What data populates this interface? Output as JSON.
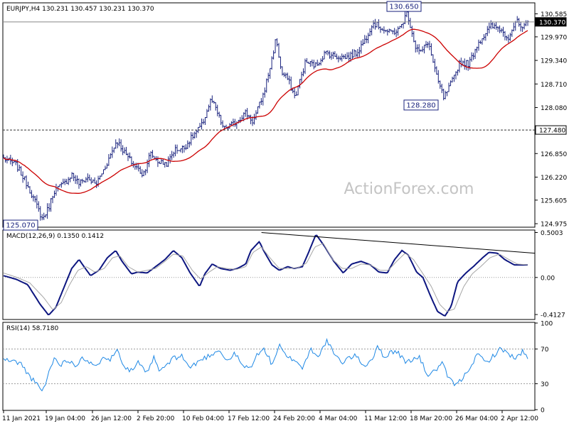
{
  "header": {
    "main_title": "EURJPY,H4  130.231 130.457 130.231 130.370",
    "macd_title": "MACD(12,26,9) 0.1350 0.1412",
    "rsi_title": "RSI(14) 58.7180",
    "watermark": "ActionForex.com"
  },
  "chart_data": [
    {
      "type": "ohlc",
      "symbol": "EURJPY",
      "timeframe": "H4",
      "last": {
        "open": "130.231",
        "high": "130.457",
        "low": "130.231",
        "close": "130.370"
      },
      "price_axis_ticks": [
        "130.585",
        "129.970",
        "129.340",
        "128.710",
        "128.080",
        "126.850",
        "126.220",
        "125.605",
        "124.975"
      ],
      "ylim": [
        124.9,
        130.86
      ],
      "annotations": [
        {
          "text": "130.650",
          "value": 130.65,
          "kind": "swing-high"
        },
        {
          "text": "128.280",
          "value": 128.28,
          "kind": "swing-low"
        },
        {
          "text": "125.070",
          "value": 125.07,
          "kind": "swing-low"
        }
      ],
      "horizontal_lines": [
        {
          "value": 130.37,
          "style": "solid",
          "label": "130.370"
        },
        {
          "value": 127.48,
          "style": "dashed",
          "label": "127.480"
        }
      ],
      "moving_average_color": "#cc0000",
      "bar_color": "#1a237e",
      "x": [
        0,
        2.4,
        4.6,
        6.2,
        7.4,
        8.6,
        9.6,
        11.6,
        13.0,
        14.4,
        16.0,
        17.6,
        19.4,
        21.6,
        23.2,
        24.8,
        25.6,
        26.6,
        28.0,
        29.6,
        31.2,
        32.6,
        34.4,
        36.0,
        37.8,
        39.6,
        40.6,
        42.0,
        44.0,
        46.2,
        47.6,
        49.6,
        51.0,
        52.0,
        53.0,
        54.2,
        55.6,
        57.6,
        59.6,
        61.4,
        63.4,
        65.4,
        67.4,
        69.0,
        70.4,
        72.0,
        73.6,
        75.4,
        77.0,
        78.6,
        79.6,
        81.0,
        82.6,
        84.0,
        86.0,
        87.0,
        88.8,
        90.4,
        91.6,
        93.0,
        94.6,
        96.2,
        97.8,
        99.0,
        100
      ],
      "close": [
        126.72,
        126.55,
        126.0,
        125.5,
        125.1,
        125.4,
        125.85,
        126.05,
        126.3,
        126.05,
        126.2,
        126.02,
        126.5,
        127.2,
        126.85,
        126.55,
        126.45,
        126.28,
        126.85,
        126.62,
        126.58,
        126.95,
        127.0,
        127.3,
        127.6,
        128.3,
        128.0,
        127.5,
        127.65,
        127.95,
        127.7,
        128.45,
        129.25,
        129.95,
        129.0,
        128.85,
        128.35,
        129.3,
        129.2,
        129.55,
        129.45,
        129.42,
        129.55,
        129.9,
        130.35,
        130.22,
        130.08,
        130.15,
        130.62,
        129.7,
        129.55,
        129.85,
        128.9,
        128.33,
        128.9,
        129.3,
        129.25,
        129.78,
        130.0,
        130.25,
        130.2,
        129.95,
        130.4,
        130.15,
        130.37
      ],
      "x_axis_labels": [
        "11 Jan 2021",
        "19 Jan 04:00",
        "26 Jan 12:00",
        "2 Feb 20:00",
        "10 Feb 04:00",
        "17 Feb 12:00",
        "24 Feb 20:00",
        "4 Mar 04:00",
        "11 Mar 12:00",
        "18 Mar 20:00",
        "26 Mar 04:00",
        "2 Apr 12:00"
      ]
    },
    {
      "type": "line",
      "indicator": "MACD(12,26,9)",
      "values_shown": [
        "0.1350",
        "0.1412"
      ],
      "ticks": [
        "0.5003",
        "0.00",
        "-0.4127"
      ],
      "ylim": [
        -0.46,
        0.52
      ],
      "zero_line": "dotted",
      "series": [
        {
          "color": "#0d1680",
          "x": [
            0,
            2.4,
            4.6,
            7.0,
            8.6,
            10.0,
            11.6,
            13.0,
            14.4,
            15.6,
            16.6,
            18.2,
            19.8,
            21.4,
            22.6,
            24.4,
            25.6,
            27.4,
            29.0,
            30.8,
            32.4,
            34.0,
            35.6,
            37.4,
            38.4,
            39.8,
            41.4,
            43.2,
            44.6,
            46.2,
            47.2,
            48.8,
            49.6,
            51.2,
            52.6,
            54.2,
            55.4,
            57.0,
            58.2,
            59.6,
            61.2,
            63.0,
            64.8,
            66.4,
            68.2,
            70.0,
            71.6,
            73.2,
            74.6,
            76.0,
            77.2,
            78.8,
            80.0,
            81.4,
            82.8,
            84.2,
            85.4,
            86.6,
            88.2,
            89.6,
            91.4,
            92.6,
            94.2,
            95.6,
            97.4,
            99.0,
            100
          ],
          "values": [
            0.02,
            -0.02,
            -0.08,
            -0.3,
            -0.42,
            -0.33,
            -0.1,
            0.1,
            0.2,
            0.1,
            0.02,
            0.08,
            0.22,
            0.3,
            0.18,
            0.04,
            0.06,
            0.05,
            0.12,
            0.2,
            0.3,
            0.22,
            0.05,
            -0.1,
            0.04,
            0.15,
            0.1,
            0.08,
            0.1,
            0.15,
            0.3,
            0.4,
            0.3,
            0.14,
            0.08,
            0.12,
            0.1,
            0.12,
            0.28,
            0.48,
            0.35,
            0.18,
            0.05,
            0.15,
            0.18,
            0.14,
            0.06,
            0.05,
            0.2,
            0.3,
            0.25,
            0.06,
            0.0,
            -0.2,
            -0.38,
            -0.43,
            -0.32,
            -0.05,
            0.05,
            0.12,
            0.22,
            0.28,
            0.27,
            0.2,
            0.14,
            0.14,
            0.14
          ]
        },
        {
          "color": "#a6a6a6",
          "x": [
            0,
            2.6,
            5.0,
            7.6,
            9.4,
            11.0,
            12.6,
            14.2,
            15.8,
            17.4,
            19.2,
            20.8,
            22.2,
            23.8,
            25.6,
            27.4,
            29.0,
            30.8,
            32.4,
            34.2,
            36.0,
            37.6,
            39.2,
            40.8,
            42.6,
            44.4,
            46.2,
            47.6,
            49.2,
            50.8,
            52.6,
            54.4,
            56.2,
            57.8,
            59.4,
            61.0,
            62.8,
            64.6,
            66.4,
            68.2,
            70.0,
            71.8,
            73.4,
            75.0,
            76.6,
            78.2,
            79.8,
            81.6,
            83.2,
            84.6,
            86.0,
            87.8,
            89.4,
            91.0,
            92.8,
            94.6,
            96.4,
            98.0,
            100
          ],
          "values": [
            0.05,
            0.0,
            -0.06,
            -0.22,
            -0.36,
            -0.28,
            -0.08,
            0.08,
            0.12,
            0.06,
            0.1,
            0.22,
            0.24,
            0.12,
            0.06,
            0.08,
            0.1,
            0.18,
            0.26,
            0.24,
            0.08,
            -0.02,
            0.06,
            0.12,
            0.1,
            0.09,
            0.12,
            0.28,
            0.34,
            0.22,
            0.1,
            0.1,
            0.11,
            0.16,
            0.34,
            0.38,
            0.2,
            0.1,
            0.1,
            0.15,
            0.14,
            0.08,
            0.08,
            0.18,
            0.27,
            0.2,
            0.06,
            -0.1,
            -0.3,
            -0.38,
            -0.35,
            -0.1,
            0.04,
            0.12,
            0.22,
            0.26,
            0.2,
            0.15,
            0.14
          ]
        }
      ],
      "trendline": {
        "x": [
          49.2,
          100
        ],
        "values": [
          0.5,
          0.27
        ]
      }
    },
    {
      "type": "line",
      "indicator": "RSI(14)",
      "value_shown": "58.7180",
      "ticks": [
        "100",
        "70",
        "30",
        "0"
      ],
      "ylim": [
        0,
        100
      ],
      "levels": [
        70,
        30
      ],
      "series": [
        {
          "color": "#1e88e5",
          "x": [
            0,
            1.6,
            3.2,
            4.8,
            6.2,
            7.2,
            8.0,
            8.8,
            9.8,
            11.0,
            12.4,
            13.8,
            15.0,
            16.2,
            17.6,
            19.0,
            20.4,
            21.8,
            23.0,
            24.4,
            25.8,
            27.2,
            28.6,
            29.8,
            31.2,
            32.6,
            34.0,
            35.6,
            37.0,
            38.4,
            39.8,
            41.0,
            42.6,
            44.2,
            45.6,
            47.0,
            48.2,
            49.8,
            51.2,
            52.6,
            54.0,
            55.6,
            57.0,
            58.6,
            60.2,
            61.6,
            63.0,
            64.4,
            65.8,
            67.4,
            68.8,
            70.2,
            71.4,
            72.8,
            74.0,
            75.4,
            76.6,
            78.0,
            79.4,
            80.8,
            82.2,
            83.6,
            85.0,
            86.4,
            87.8,
            89.2,
            90.6,
            92.0,
            93.4,
            94.8,
            96.2,
            97.6,
            99.0,
            100
          ],
          "values": [
            58,
            56,
            54,
            40,
            30,
            22,
            28,
            48,
            60,
            52,
            58,
            50,
            62,
            55,
            48,
            63,
            58,
            70,
            50,
            45,
            55,
            40,
            60,
            44,
            52,
            60,
            62,
            48,
            55,
            60,
            64,
            70,
            56,
            65,
            50,
            48,
            62,
            70,
            52,
            74,
            60,
            58,
            48,
            70,
            62,
            80,
            65,
            54,
            60,
            62,
            50,
            58,
            72,
            60,
            68,
            65,
            55,
            58,
            60,
            40,
            44,
            54,
            35,
            28,
            38,
            52,
            64,
            54,
            62,
            70,
            66,
            58,
            67,
            58.7
          ]
        }
      ]
    }
  ]
}
